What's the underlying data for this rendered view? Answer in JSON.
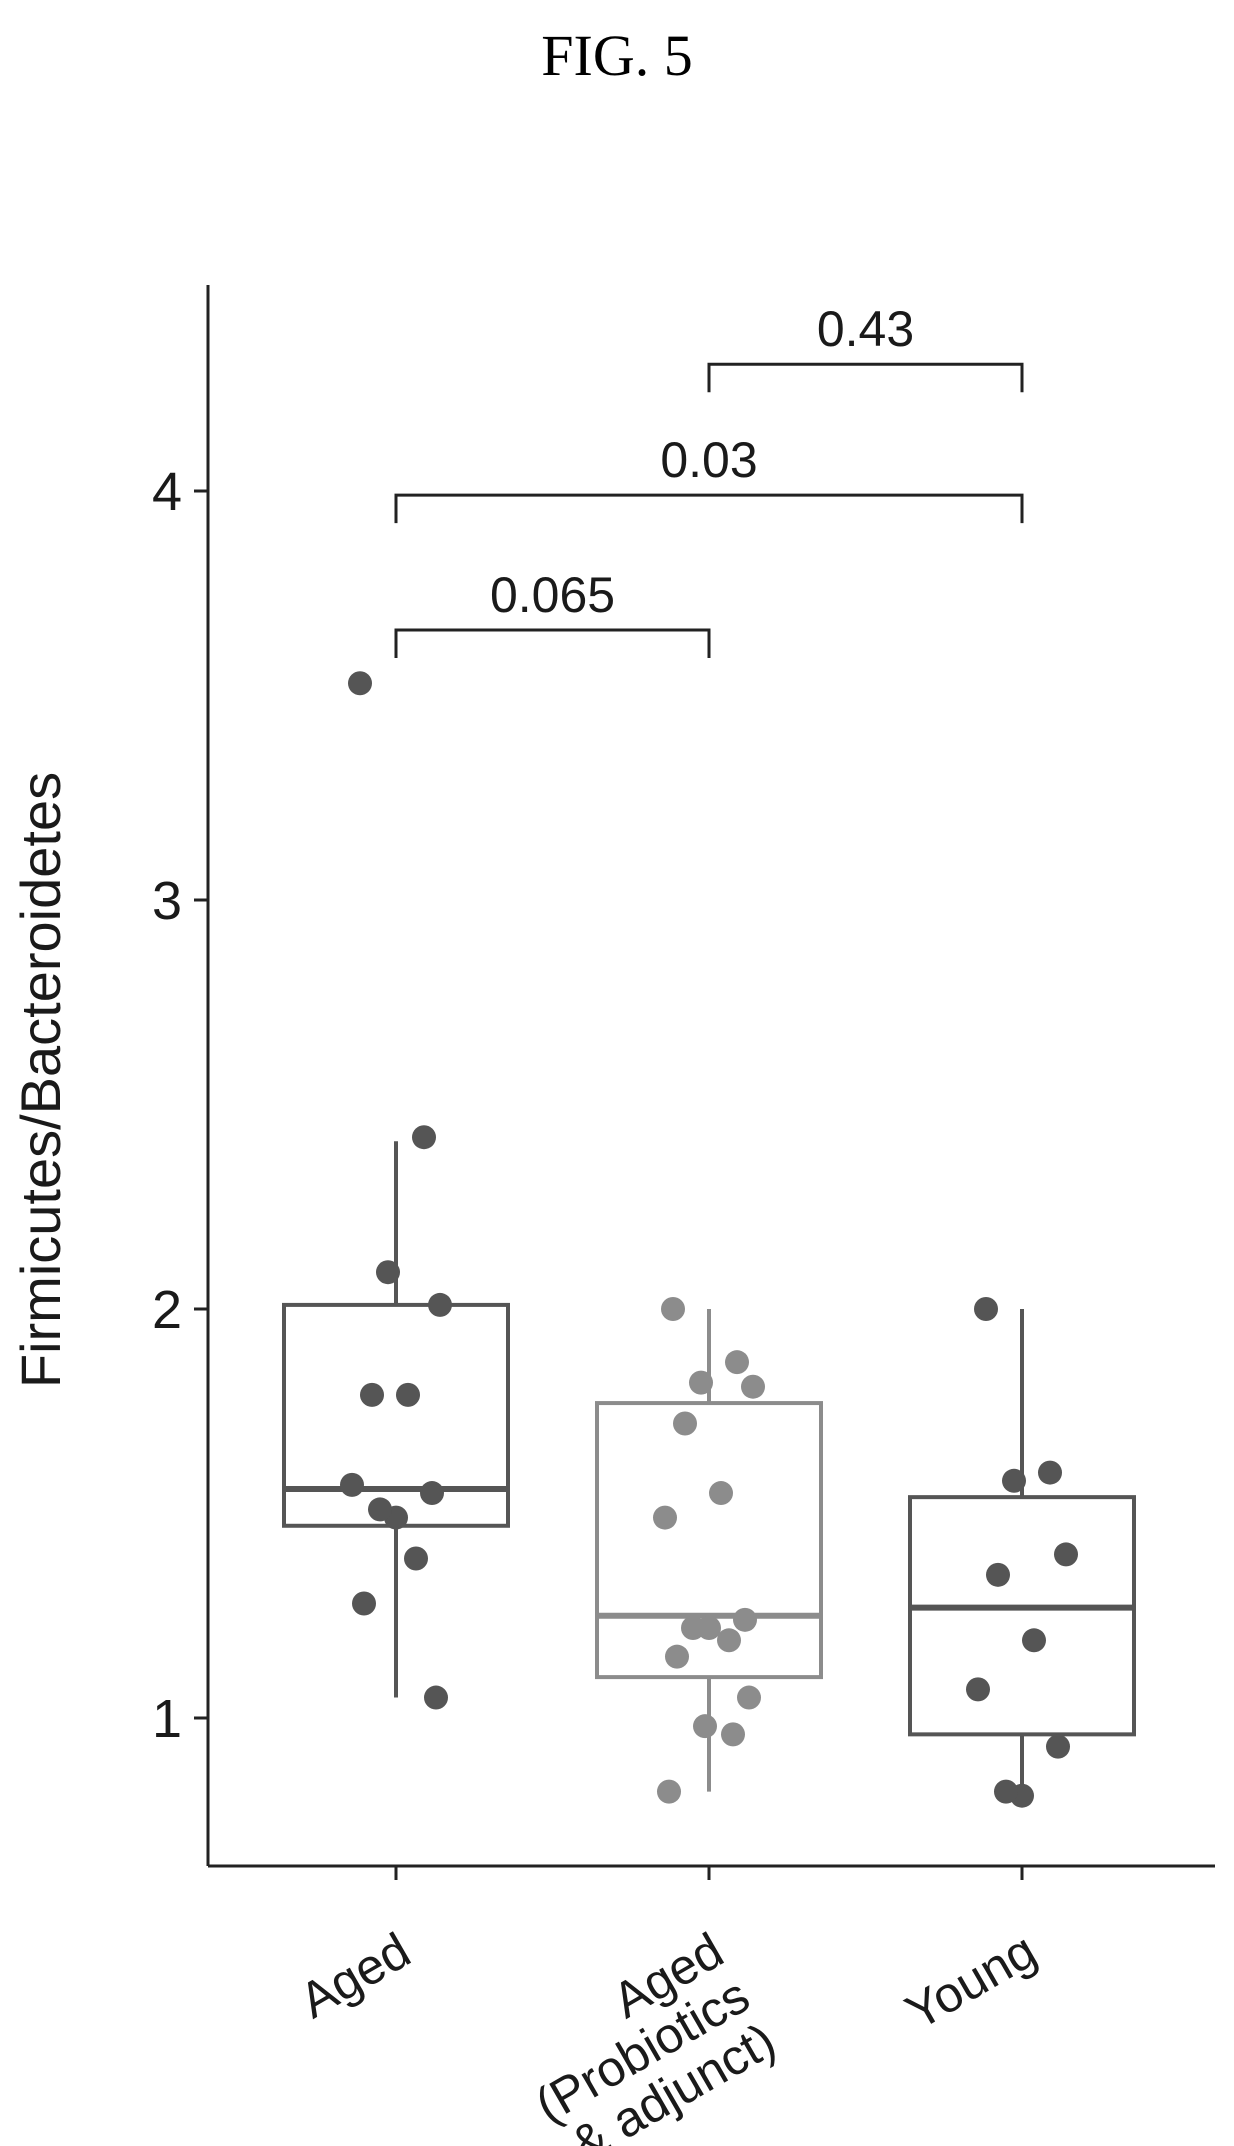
{
  "figure_label": "FIG. 5",
  "chart_data": {
    "type": "box",
    "ylabel": "Firmicutes/Bacteroidetes",
    "xlabel": "",
    "ylim": [
      0.65,
      4.5
    ],
    "yticks": [
      1,
      2,
      3,
      4
    ],
    "ytick_labels": [
      "1",
      "2",
      "3",
      "4"
    ],
    "grid": false,
    "categories": [
      {
        "lines": [
          "Aged"
        ]
      },
      {
        "lines": [
          "Aged",
          "(Probiotics",
          "& adjunct)"
        ]
      },
      {
        "lines": [
          "Young"
        ]
      }
    ],
    "boxes": [
      {
        "color": "#555555",
        "q1": 1.47,
        "median": 1.56,
        "q3": 2.01,
        "whisker_low": 1.05,
        "whisker_high": 2.41,
        "points": [
          3.53,
          2.42,
          2.09,
          2.01,
          1.79,
          1.79,
          1.57,
          1.55,
          1.49,
          1.51,
          1.39,
          1.28,
          1.05
        ]
      },
      {
        "color": "#8c8c8c",
        "q1": 1.1,
        "median": 1.25,
        "q3": 1.77,
        "whisker_low": 0.82,
        "whisker_high": 2.0,
        "points": [
          2.0,
          1.87,
          1.82,
          1.81,
          1.72,
          1.55,
          1.49,
          1.24,
          1.22,
          1.22,
          1.19,
          1.15,
          1.05,
          0.98,
          0.96,
          0.82
        ]
      },
      {
        "color": "#555555",
        "q1": 0.96,
        "median": 1.27,
        "q3": 1.54,
        "whisker_low": 0.8,
        "whisker_high": 2.0,
        "points": [
          2.0,
          1.6,
          1.58,
          1.4,
          1.35,
          1.19,
          1.07,
          0.93,
          0.81,
          0.82
        ]
      }
    ],
    "comparisons": [
      {
        "from": 0,
        "to": 1,
        "y": 3.66,
        "label": "0.065"
      },
      {
        "from": 0,
        "to": 2,
        "y": 3.99,
        "label": "0.03"
      },
      {
        "from": 1,
        "to": 2,
        "y": 4.31,
        "label": "0.43"
      }
    ]
  }
}
